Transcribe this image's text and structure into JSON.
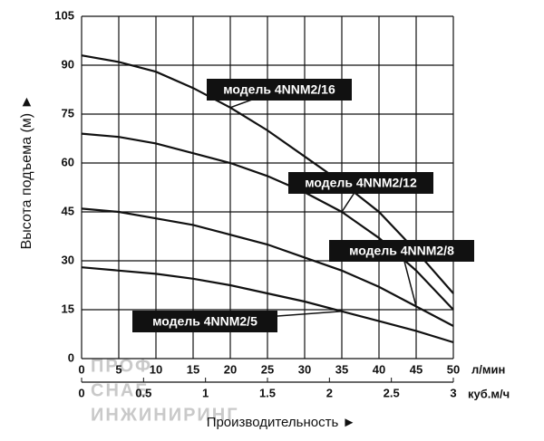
{
  "chart_data": {
    "type": "line",
    "x": [
      0,
      5,
      10,
      15,
      20,
      25,
      30,
      35,
      40,
      45,
      50
    ],
    "series": [
      {
        "name": "модель 4NNM2/16",
        "color": "#111111",
        "values": [
          93,
          91,
          88,
          83,
          77,
          70,
          62,
          54,
          45,
          33,
          20
        ]
      },
      {
        "name": "модель 4NNM2/12",
        "color": "#111111",
        "values": [
          69,
          68,
          66,
          63,
          60,
          56,
          51,
          45,
          37,
          27,
          15
        ]
      },
      {
        "name": "модель 4NNM2/8",
        "color": "#111111",
        "values": [
          46,
          45,
          43,
          41,
          38,
          35,
          31,
          27,
          22,
          16,
          10
        ]
      },
      {
        "name": "модель 4NNM2/5",
        "color": "#111111",
        "values": [
          28,
          27,
          26,
          24.5,
          22.5,
          20,
          17.5,
          14.5,
          11.5,
          8.5,
          5
        ]
      }
    ],
    "xlim": [
      0,
      50
    ],
    "xticks": [
      0,
      5,
      10,
      15,
      20,
      25,
      30,
      35,
      40,
      45,
      50
    ],
    "x_unit": "л/мин",
    "x2lim": [
      0,
      3
    ],
    "x2ticks": [
      0,
      0.5,
      1,
      1.5,
      2,
      2.5,
      3
    ],
    "x2_unit": "куб.м/ч",
    "ylim": [
      0,
      105
    ],
    "yticks": [
      0,
      15,
      30,
      45,
      60,
      75,
      90,
      105
    ],
    "xlabel": "Производительность ►",
    "ylabel": "Высота подъема (м) ►",
    "grid": true
  },
  "watermark": [
    "ПРОФ",
    "СНАБ",
    "ИНЖИНИРИНГ"
  ]
}
